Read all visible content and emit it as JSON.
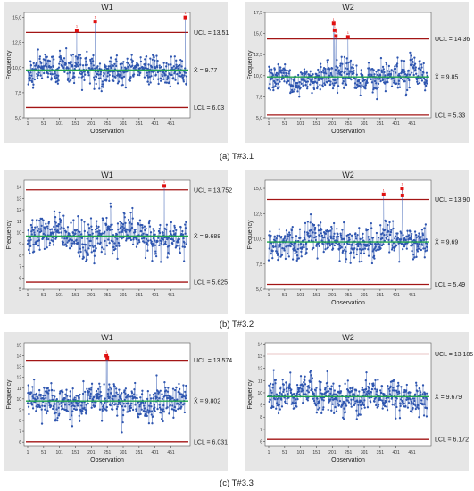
{
  "colors": {
    "panel_bg": "#e6e6e6",
    "plot_bg": "#ffffff",
    "control_limit": "#a31515",
    "center_line": "#1fa34a",
    "points": "#2f56b0",
    "out_of_control": "#e01010"
  },
  "rows": [
    {
      "caption": "(a) T#3.1"
    },
    {
      "caption": "(b) T#3.2"
    },
    {
      "caption": "(c) T#3.3"
    }
  ],
  "chart_data": [
    {
      "type": "line",
      "title": "W1",
      "xlabel": "Observation",
      "ylabel": "Frequency",
      "n": 500,
      "ylim": [
        5.0,
        15.5
      ],
      "yticks": [
        5.0,
        7.5,
        10.0,
        12.5,
        15.0
      ],
      "ytick_labels": [
        "5,0",
        "7,5",
        "10,0",
        "12,5",
        "15,0"
      ],
      "xticks": [
        1,
        51,
        101,
        151,
        201,
        251,
        301,
        351,
        401,
        451
      ],
      "ucl": 13.51,
      "center": 9.77,
      "lcl": 6.03,
      "ucl_label": "UCL = 13.51",
      "center_label": "X̄ = 9.77",
      "lcl_label": "LCL = 6.03",
      "out_of_control": [
        {
          "x": 155,
          "y": 13.7
        },
        {
          "x": 213,
          "y": 14.6
        },
        {
          "x": 496,
          "y": 15.0
        }
      ]
    },
    {
      "type": "line",
      "title": "W2",
      "xlabel": "Observation",
      "ylabel": "Frequency",
      "n": 500,
      "ylim": [
        5.0,
        17.5
      ],
      "yticks": [
        5.0,
        7.5,
        10.0,
        12.5,
        15.0,
        17.5
      ],
      "ytick_labels": [
        "5,0",
        "7,5",
        "10,0",
        "12,5",
        "15,0",
        "17,5"
      ],
      "xticks": [
        1,
        51,
        101,
        151,
        201,
        251,
        301,
        351,
        401,
        451
      ],
      "ucl": 14.36,
      "center": 9.85,
      "lcl": 5.33,
      "ucl_label": "UCL = 14.36",
      "center_label": "X̄ = 9.85",
      "lcl_label": "LCL = 5.33",
      "out_of_control": [
        {
          "x": 205,
          "y": 16.2
        },
        {
          "x": 208,
          "y": 15.4
        },
        {
          "x": 212,
          "y": 14.7
        },
        {
          "x": 250,
          "y": 14.6
        }
      ]
    },
    {
      "type": "line",
      "title": "W1",
      "xlabel": "",
      "ylabel": "Frequency",
      "n": 500,
      "ylim": [
        5.0,
        14.6
      ],
      "yticks": [
        5,
        6,
        7,
        8,
        9,
        10,
        11,
        12,
        13,
        14
      ],
      "ytick_labels": [
        "5",
        "6",
        "7",
        "8",
        "9",
        "10",
        "11",
        "12",
        "13",
        "14"
      ],
      "xticks": [
        1,
        51,
        101,
        151,
        201,
        251,
        301,
        351,
        401,
        451
      ],
      "ucl": 13.752,
      "center": 9.688,
      "lcl": 5.625,
      "ucl_label": "UCL = 13.752",
      "center_label": "X̄ = 9.688",
      "lcl_label": "LCL = 5.625",
      "out_of_control": [
        {
          "x": 430,
          "y": 14.1
        }
      ]
    },
    {
      "type": "line",
      "title": "W2",
      "xlabel": "Observation",
      "ylabel": "Frequency",
      "n": 500,
      "ylim": [
        5.0,
        15.8
      ],
      "yticks": [
        5.0,
        7.5,
        10.0,
        12.5,
        15.0
      ],
      "ytick_labels": [
        "5,0",
        "7,5",
        "10,0",
        "12,5",
        "15,0"
      ],
      "xticks": [
        1,
        51,
        101,
        151,
        201,
        251,
        301,
        351,
        401,
        451
      ],
      "ucl": 13.9,
      "center": 9.69,
      "lcl": 5.49,
      "ucl_label": "UCL = 13.90",
      "center_label": "X̄ = 9.69",
      "lcl_label": "LCL = 5.49",
      "out_of_control": [
        {
          "x": 362,
          "y": 14.4
        },
        {
          "x": 420,
          "y": 15.0
        },
        {
          "x": 421,
          "y": 14.3
        }
      ]
    },
    {
      "type": "line",
      "title": "W1",
      "xlabel": "Observation",
      "ylabel": "Frequency",
      "n": 500,
      "ylim": [
        5.6,
        15.2
      ],
      "yticks": [
        6,
        7,
        8,
        9,
        10,
        11,
        12,
        13,
        14,
        15
      ],
      "ytick_labels": [
        "6",
        "7",
        "8",
        "9",
        "10",
        "11",
        "12",
        "13",
        "14",
        "15"
      ],
      "xticks": [
        1,
        51,
        101,
        151,
        201,
        251,
        301,
        351,
        401,
        451
      ],
      "ucl": 13.574,
      "center": 9.802,
      "lcl": 6.031,
      "ucl_label": "UCL = 13.574",
      "center_label": "X̄ = 9.802",
      "lcl_label": "LCL = 6.031",
      "out_of_control": [
        {
          "x": 248,
          "y": 14.0
        },
        {
          "x": 251,
          "y": 13.8
        }
      ]
    },
    {
      "type": "line",
      "title": "W2",
      "xlabel": "Observation",
      "ylabel": "Frequency",
      "n": 500,
      "ylim": [
        5.6,
        14.1
      ],
      "yticks": [
        6,
        7,
        8,
        9,
        10,
        11,
        12,
        13,
        14
      ],
      "ytick_labels": [
        "6",
        "7",
        "8",
        "9",
        "10",
        "11",
        "12",
        "13",
        "14"
      ],
      "xticks": [
        1,
        51,
        101,
        151,
        201,
        251,
        301,
        351,
        401,
        451
      ],
      "ucl": 13.185,
      "center": 9.679,
      "lcl": 6.172,
      "ucl_label": "UCL = 13.185",
      "center_label": "X̄ = 9.679",
      "lcl_label": "LCL = 6.172",
      "out_of_control": []
    }
  ]
}
